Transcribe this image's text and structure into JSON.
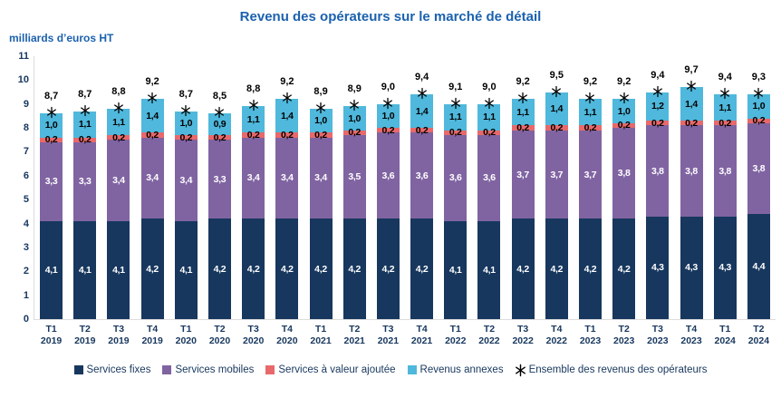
{
  "title": "Revenu des opérateurs sur le marché de détail",
  "unit_label": "milliards d’euros HT",
  "colors": {
    "title": "#1B61AE",
    "axis_text": "#17375E",
    "total_label": "#000000",
    "marker": "#000000",
    "axis_line": "#DCDCDC"
  },
  "chart_data": {
    "type": "bar",
    "stacked": true,
    "grid": false,
    "legend_position": "bottom",
    "ylim": [
      0,
      11
    ],
    "yticks": [
      0,
      1,
      2,
      3,
      4,
      5,
      6,
      7,
      8,
      9,
      10,
      11
    ],
    "categories": [
      "T1 2019",
      "T2 2019",
      "T3 2019",
      "T4 2019",
      "T1 2020",
      "T2 2020",
      "T3 2020",
      "T4 2020",
      "T1 2021",
      "T2 2021",
      "T3 2021",
      "T4 2021",
      "T1 2022",
      "T2 2022",
      "T3 2022",
      "T4 2022",
      "T1 2023",
      "T2 2023",
      "T3 2023",
      "T4 2023",
      "T1 2024",
      "T2 2024"
    ],
    "series": [
      {
        "key": "services-fixes",
        "name": "Services fixes",
        "color": "#17375E",
        "label_color": "#FFFFFF",
        "values": [
          4.1,
          4.1,
          4.1,
          4.2,
          4.1,
          4.2,
          4.2,
          4.2,
          4.2,
          4.2,
          4.2,
          4.2,
          4.1,
          4.1,
          4.2,
          4.2,
          4.2,
          4.2,
          4.3,
          4.3,
          4.3,
          4.4
        ]
      },
      {
        "key": "services-mobiles",
        "name": "Services mobiles",
        "color": "#8064A2",
        "label_color": "#FFFFFF",
        "values": [
          3.3,
          3.3,
          3.4,
          3.4,
          3.4,
          3.3,
          3.4,
          3.4,
          3.4,
          3.5,
          3.6,
          3.6,
          3.6,
          3.6,
          3.7,
          3.7,
          3.7,
          3.8,
          3.8,
          3.8,
          3.8,
          3.8
        ]
      },
      {
        "key": "services-valeur-ajoutee",
        "name": "Services à valeur ajoutée",
        "color": "#E8696B",
        "label_color": "#000000",
        "values": [
          0.2,
          0.2,
          0.2,
          0.2,
          0.2,
          0.2,
          0.2,
          0.2,
          0.2,
          0.2,
          0.2,
          0.2,
          0.2,
          0.2,
          0.2,
          0.2,
          0.2,
          0.2,
          0.2,
          0.2,
          0.2,
          0.2
        ]
      },
      {
        "key": "revenus-annexes",
        "name": "Revenus annexes",
        "color": "#4FB8DC",
        "label_color": "#000000",
        "values": [
          1.0,
          1.1,
          1.1,
          1.4,
          1.0,
          0.9,
          1.1,
          1.4,
          1.0,
          1.0,
          1.0,
          1.4,
          1.1,
          1.1,
          1.1,
          1.4,
          1.1,
          1.0,
          1.2,
          1.4,
          1.1,
          1.0
        ]
      }
    ],
    "totals_series": {
      "key": "ensemble-des-revenus",
      "name": "Ensemble des revenus des opérateurs",
      "marker": "star",
      "values": [
        8.7,
        8.7,
        8.8,
        9.2,
        8.7,
        8.5,
        8.8,
        9.2,
        8.9,
        8.9,
        9.0,
        9.4,
        9.1,
        9.0,
        9.2,
        9.5,
        9.2,
        9.2,
        9.4,
        9.7,
        9.4,
        9.3
      ]
    }
  }
}
